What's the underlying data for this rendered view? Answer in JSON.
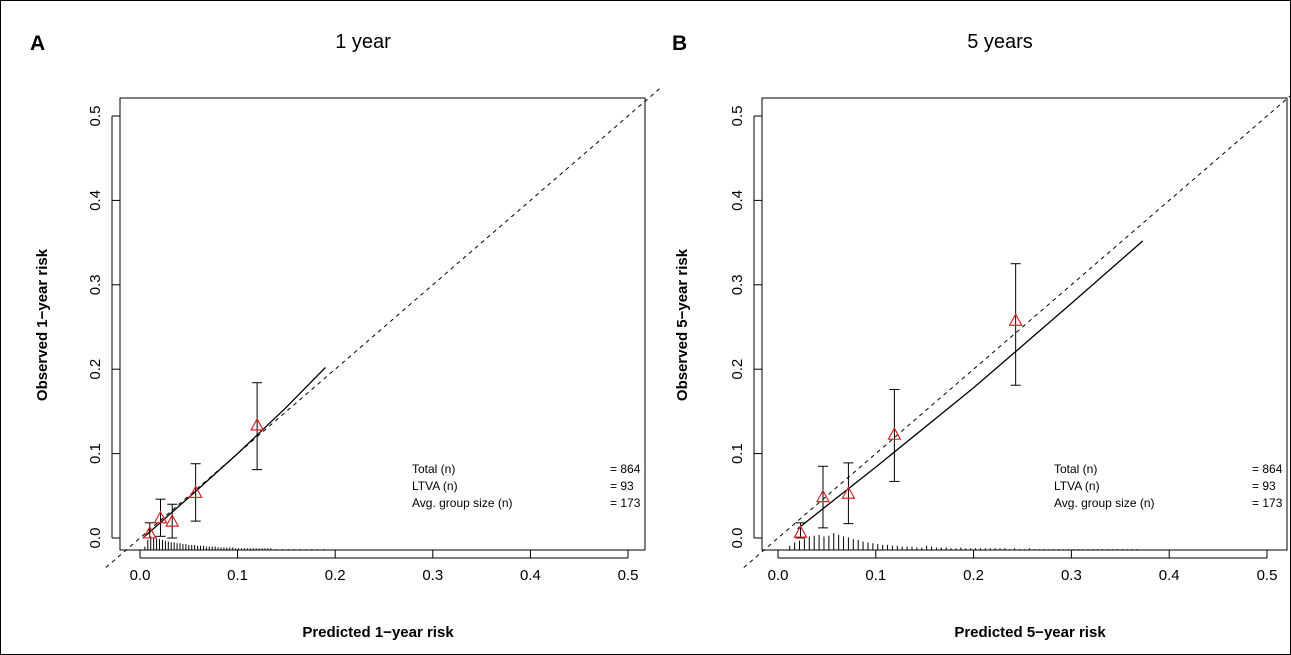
{
  "chart_data": [
    {
      "type": "scatter",
      "panel": "A",
      "title": "1 year",
      "xlabel": "Predicted 1−year risk",
      "ylabel": "Observed 1−year risk",
      "xlim": [
        0,
        0.5
      ],
      "ylim": [
        0,
        0.5
      ],
      "xticks": [
        "0.0",
        "0.1",
        "0.2",
        "0.3",
        "0.4",
        "0.5"
      ],
      "yticks": [
        "0.0",
        "0.1",
        "0.2",
        "0.3",
        "0.4",
        "0.5"
      ],
      "grid": false,
      "reference_line": "dashed diagonal y = x",
      "points": [
        {
          "x": 0.01,
          "y": 0.006,
          "ci": [
            0.0,
            0.018
          ]
        },
        {
          "x": 0.021,
          "y": 0.024,
          "ci": [
            0.002,
            0.046
          ]
        },
        {
          "x": 0.033,
          "y": 0.02,
          "ci": [
            0.0,
            0.04
          ]
        },
        {
          "x": 0.057,
          "y": 0.054,
          "ci": [
            0.02,
            0.088
          ]
        },
        {
          "x": 0.12,
          "y": 0.134,
          "ci": [
            0.081,
            0.184
          ]
        }
      ],
      "smooth_curve": [
        [
          0.003,
          0.0
        ],
        [
          0.05,
          0.048
        ],
        [
          0.1,
          0.1
        ],
        [
          0.15,
          0.155
        ],
        [
          0.19,
          0.202
        ]
      ],
      "spike_histogram": {
        "x": [
          0.005,
          0.008,
          0.011,
          0.014,
          0.017,
          0.02,
          0.023,
          0.026,
          0.029,
          0.032,
          0.035,
          0.038,
          0.041,
          0.044,
          0.047,
          0.05,
          0.053,
          0.056,
          0.059,
          0.062,
          0.065,
          0.068,
          0.071,
          0.074,
          0.077,
          0.08,
          0.083,
          0.086,
          0.089,
          0.092,
          0.095,
          0.098,
          0.101,
          0.104,
          0.107,
          0.11,
          0.113,
          0.116,
          0.119,
          0.122,
          0.125,
          0.128,
          0.131,
          0.134,
          0.14,
          0.146,
          0.152,
          0.158,
          0.164,
          0.17,
          0.176,
          0.182,
          0.188
        ],
        "h": [
          0.004,
          0.012,
          0.016,
          0.015,
          0.014,
          0.013,
          0.012,
          0.011,
          0.01,
          0.009,
          0.009,
          0.008,
          0.008,
          0.007,
          0.007,
          0.006,
          0.006,
          0.006,
          0.005,
          0.005,
          0.005,
          0.004,
          0.004,
          0.004,
          0.004,
          0.003,
          0.003,
          0.003,
          0.003,
          0.003,
          0.003,
          0.002,
          0.002,
          0.002,
          0.002,
          0.002,
          0.002,
          0.002,
          0.002,
          0.002,
          0.002,
          0.002,
          0.002,
          0.002,
          0.001,
          0.001,
          0.001,
          0.001,
          0.001,
          0.001,
          0.001,
          0.001,
          0.001
        ]
      },
      "legend": {
        "position": "bottom-right",
        "rows": [
          {
            "label": "Total (n)",
            "value": "= 864"
          },
          {
            "label": "LTVA (n)",
            "value": "= 93"
          },
          {
            "label": "Avg. group size (n)",
            "value": "= 173"
          }
        ]
      }
    },
    {
      "type": "scatter",
      "panel": "B",
      "title": "5 years",
      "xlabel": "Predicted 5−year risk",
      "ylabel": "Observed 5−year risk",
      "xlim": [
        0,
        0.5
      ],
      "ylim": [
        0,
        0.5
      ],
      "xticks": [
        "0.0",
        "0.1",
        "0.2",
        "0.3",
        "0.4",
        "0.5"
      ],
      "yticks": [
        "0.0",
        "0.1",
        "0.2",
        "0.3",
        "0.4",
        "0.5"
      ],
      "grid": false,
      "reference_line": "dashed diagonal y = x",
      "points": [
        {
          "x": 0.023,
          "y": 0.007,
          "ci": [
            0.0,
            0.018
          ]
        },
        {
          "x": 0.046,
          "y": 0.049,
          "ci": [
            0.012,
            0.085
          ]
        },
        {
          "x": 0.072,
          "y": 0.053,
          "ci": [
            0.017,
            0.089
          ]
        },
        {
          "x": 0.119,
          "y": 0.123,
          "ci": [
            0.067,
            0.176
          ]
        },
        {
          "x": 0.243,
          "y": 0.258,
          "ci": [
            0.181,
            0.325
          ]
        }
      ],
      "smooth_curve": [
        [
          0.02,
          0.011
        ],
        [
          0.1,
          0.084
        ],
        [
          0.2,
          0.178
        ],
        [
          0.3,
          0.278
        ],
        [
          0.373,
          0.352
        ]
      ],
      "spike_histogram": {
        "x": [
          0.012,
          0.017,
          0.022,
          0.027,
          0.032,
          0.037,
          0.042,
          0.047,
          0.052,
          0.057,
          0.062,
          0.067,
          0.072,
          0.077,
          0.082,
          0.087,
          0.092,
          0.097,
          0.102,
          0.107,
          0.112,
          0.117,
          0.122,
          0.127,
          0.132,
          0.137,
          0.142,
          0.147,
          0.152,
          0.157,
          0.162,
          0.167,
          0.172,
          0.177,
          0.182,
          0.187,
          0.192,
          0.197,
          0.202,
          0.207,
          0.212,
          0.217,
          0.222,
          0.227,
          0.232,
          0.237,
          0.242,
          0.247,
          0.252,
          0.257,
          0.262,
          0.267,
          0.272,
          0.277,
          0.282,
          0.287,
          0.292,
          0.297,
          0.302,
          0.307,
          0.312,
          0.317,
          0.322,
          0.327,
          0.332,
          0.337,
          0.342,
          0.347,
          0.352,
          0.357,
          0.362,
          0.367
        ],
        "h": [
          0.005,
          0.009,
          0.011,
          0.013,
          0.016,
          0.017,
          0.018,
          0.016,
          0.017,
          0.02,
          0.018,
          0.016,
          0.015,
          0.013,
          0.012,
          0.01,
          0.009,
          0.008,
          0.007,
          0.006,
          0.006,
          0.005,
          0.005,
          0.004,
          0.004,
          0.004,
          0.003,
          0.003,
          0.005,
          0.004,
          0.003,
          0.003,
          0.003,
          0.002,
          0.002,
          0.003,
          0.002,
          0.002,
          0.002,
          0.002,
          0.002,
          0.002,
          0.002,
          0.002,
          0.002,
          0.001,
          0.002,
          0.001,
          0.001,
          0.002,
          0.001,
          0.001,
          0.001,
          0.001,
          0.001,
          0.001,
          0.001,
          0.001,
          0.001,
          0.001,
          0.001,
          0.001,
          0.001,
          0.001,
          0.001,
          0.001,
          0.001,
          0.001,
          0.001,
          0.001,
          0.001,
          0.001
        ]
      },
      "legend": {
        "position": "bottom-right",
        "rows": [
          {
            "label": "Total (n)",
            "value": "= 864"
          },
          {
            "label": "LTVA (n)",
            "value": "= 93"
          },
          {
            "label": "Avg. group size (n)",
            "value": "= 173"
          }
        ]
      }
    }
  ],
  "colors": {
    "marker": "#d62728",
    "line": "#000000",
    "border": "#000000"
  }
}
